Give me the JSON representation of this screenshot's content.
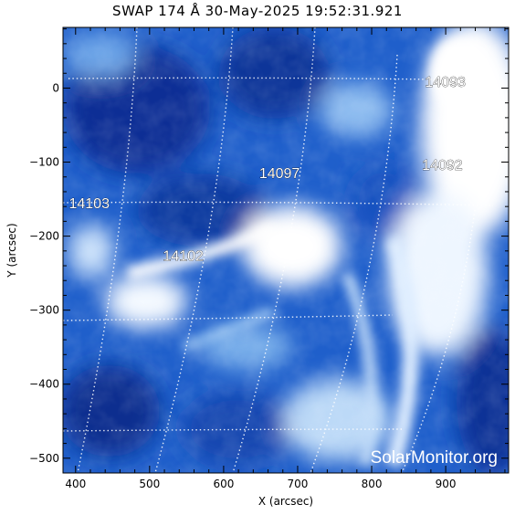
{
  "title": "SWAP 174 Å 30-May-2025 19:52:31.921",
  "axes": {
    "x_label": "X (arcsec)",
    "y_label": "Y (arcsec)",
    "x_range": [
      383,
      985
    ],
    "y_range": [
      -520,
      82
    ],
    "x_ticks": [
      400,
      500,
      600,
      700,
      800,
      900
    ],
    "y_ticks": [
      0,
      -100,
      -200,
      -300,
      -400,
      -500
    ],
    "y_tick_labels": [
      "0",
      "−100",
      "−200",
      "−300",
      "−400",
      "−500"
    ]
  },
  "active_regions": [
    {
      "id": "14093",
      "x": 872,
      "y": 9
    },
    {
      "id": "14092",
      "x": 868,
      "y": -103
    },
    {
      "id": "14097",
      "x": 648,
      "y": -114
    },
    {
      "id": "14103",
      "x": 391,
      "y": -155
    },
    {
      "id": "14102",
      "x": 518,
      "y": -226
    }
  ],
  "watermark": "SolarMonitor.org",
  "colors": {
    "dark": "#0a2a8c",
    "mid": "#2f6fd6",
    "light": "#9fcaf5",
    "white": "#ffffff"
  }
}
